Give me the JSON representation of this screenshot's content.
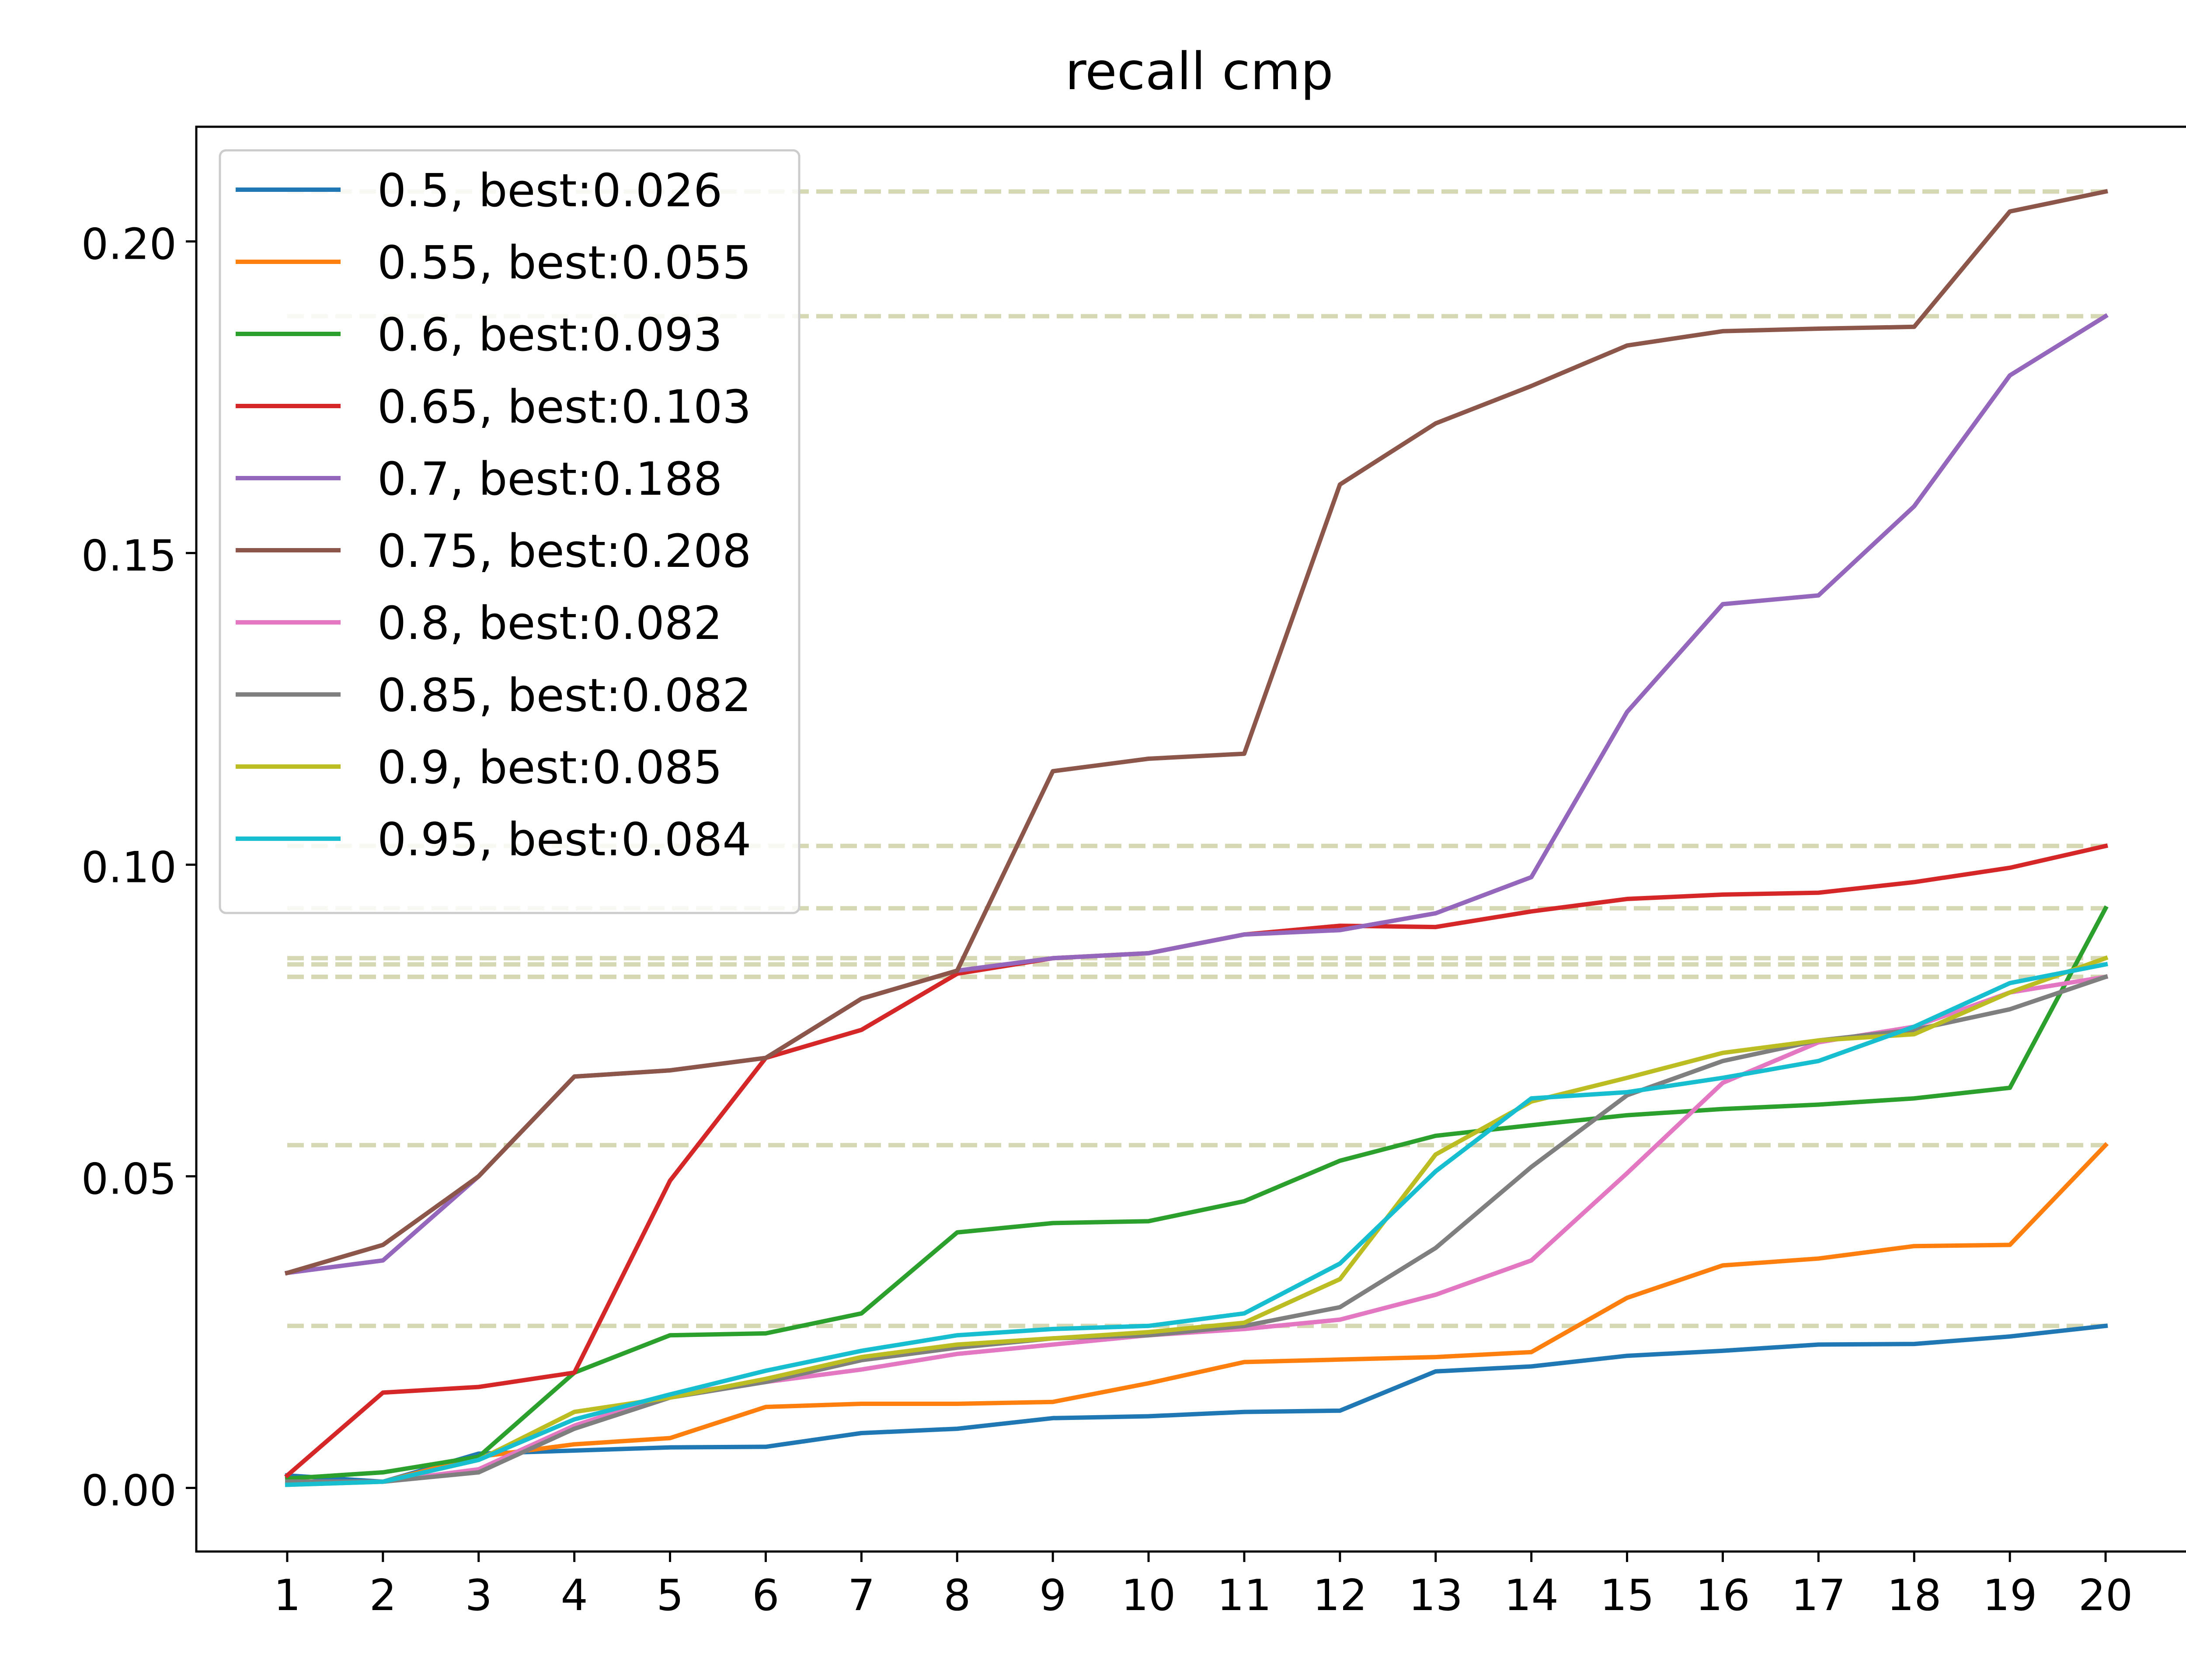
{
  "chart_data": {
    "type": "line",
    "title": "recall cmp",
    "xlabel": "",
    "ylabel": "",
    "x": [
      1,
      2,
      3,
      4,
      5,
      6,
      7,
      8,
      9,
      10,
      11,
      12,
      13,
      14,
      15,
      16,
      17,
      18,
      19,
      20
    ],
    "xlim": [
      0.05,
      20.95
    ],
    "ylim": [
      -0.0102,
      0.2184
    ],
    "yticks": [
      0.0,
      0.05,
      0.1,
      0.15,
      0.2
    ],
    "ytick_labels": [
      "0.00",
      "0.05",
      "0.10",
      "0.15",
      "0.20"
    ],
    "xtick_labels": [
      "1",
      "2",
      "3",
      "4",
      "5",
      "6",
      "7",
      "8",
      "9",
      "10",
      "11",
      "12",
      "13",
      "14",
      "15",
      "16",
      "17",
      "18",
      "19",
      "20"
    ],
    "grid": false,
    "legend_position": "top-left",
    "reference_lines": {
      "style": "dashed",
      "color": "#d5d8b2",
      "x_range": [
        1,
        20
      ],
      "values": [
        0.026,
        0.055,
        0.093,
        0.103,
        0.188,
        0.208,
        0.082,
        0.082,
        0.085,
        0.084
      ]
    },
    "series": [
      {
        "name": "0.5, best:0.026",
        "color": "#1f77b4",
        "values": [
          0.002,
          0.001,
          0.0055,
          0.006,
          0.0065,
          0.0066,
          0.0088,
          0.0095,
          0.0112,
          0.0115,
          0.0122,
          0.0124,
          0.0187,
          0.0195,
          0.0212,
          0.022,
          0.023,
          0.0231,
          0.0243,
          0.026
        ]
      },
      {
        "name": "0.55, best:0.055",
        "color": "#ff7f0e",
        "values": [
          0.001,
          0.001,
          0.005,
          0.007,
          0.008,
          0.013,
          0.0135,
          0.0135,
          0.0138,
          0.0168,
          0.0202,
          0.0206,
          0.021,
          0.0218,
          0.0305,
          0.0357,
          0.0368,
          0.0388,
          0.039,
          0.055
        ]
      },
      {
        "name": "0.6, best:0.093",
        "color": "#2ca02c",
        "values": [
          0.0015,
          0.0025,
          0.005,
          0.0185,
          0.0245,
          0.0248,
          0.028,
          0.041,
          0.0425,
          0.0428,
          0.046,
          0.0525,
          0.0565,
          0.0582,
          0.0598,
          0.0608,
          0.0615,
          0.0625,
          0.0642,
          0.093
        ]
      },
      {
        "name": "0.65, best:0.103",
        "color": "#d62728",
        "values": [
          0.002,
          0.0153,
          0.0162,
          0.0185,
          0.0493,
          0.069,
          0.0735,
          0.0825,
          0.085,
          0.0858,
          0.0888,
          0.0902,
          0.09,
          0.0925,
          0.0945,
          0.0952,
          0.0955,
          0.0972,
          0.0995,
          0.103
        ]
      },
      {
        "name": "0.7, best:0.188",
        "color": "#9467bd",
        "values": [
          0.0345,
          0.0365,
          0.05,
          0.066,
          0.067,
          0.069,
          0.0785,
          0.083,
          0.085,
          0.0858,
          0.0888,
          0.0895,
          0.0922,
          0.098,
          0.1245,
          0.1418,
          0.1432,
          0.1575,
          0.1785,
          0.188
        ]
      },
      {
        "name": "0.75, best:0.208",
        "color": "#8c564b",
        "values": [
          0.0345,
          0.039,
          0.05,
          0.066,
          0.067,
          0.069,
          0.0785,
          0.083,
          0.115,
          0.117,
          0.1178,
          0.161,
          0.1708,
          0.1768,
          0.1833,
          0.1856,
          0.186,
          0.1863,
          0.2048,
          0.208
        ]
      },
      {
        "name": "0.8, best:0.082",
        "color": "#e377c2",
        "values": [
          0.001,
          0.001,
          0.003,
          0.01,
          0.015,
          0.017,
          0.019,
          0.0215,
          0.023,
          0.0245,
          0.0255,
          0.027,
          0.031,
          0.0365,
          0.0505,
          0.065,
          0.0715,
          0.074,
          0.0795,
          0.082
        ]
      },
      {
        "name": "0.85, best:0.082",
        "color": "#7f7f7f",
        "values": [
          0.001,
          0.001,
          0.0025,
          0.0095,
          0.0145,
          0.017,
          0.0205,
          0.0225,
          0.024,
          0.0245,
          0.026,
          0.029,
          0.0385,
          0.0515,
          0.063,
          0.0685,
          0.0718,
          0.0735,
          0.0768,
          0.082
        ]
      },
      {
        "name": "0.9, best:0.085",
        "color": "#bcbd22",
        "values": [
          0.0005,
          0.001,
          0.0045,
          0.0122,
          0.0145,
          0.0175,
          0.021,
          0.023,
          0.024,
          0.025,
          0.0265,
          0.0335,
          0.0535,
          0.062,
          0.0658,
          0.0698,
          0.0718,
          0.0728,
          0.0795,
          0.085
        ]
      },
      {
        "name": "0.95, best:0.084",
        "color": "#17becf",
        "values": [
          0.0005,
          0.001,
          0.0045,
          0.011,
          0.015,
          0.0188,
          0.022,
          0.0245,
          0.0255,
          0.026,
          0.028,
          0.036,
          0.0508,
          0.0625,
          0.0635,
          0.0658,
          0.0685,
          0.074,
          0.081,
          0.084
        ]
      }
    ]
  }
}
